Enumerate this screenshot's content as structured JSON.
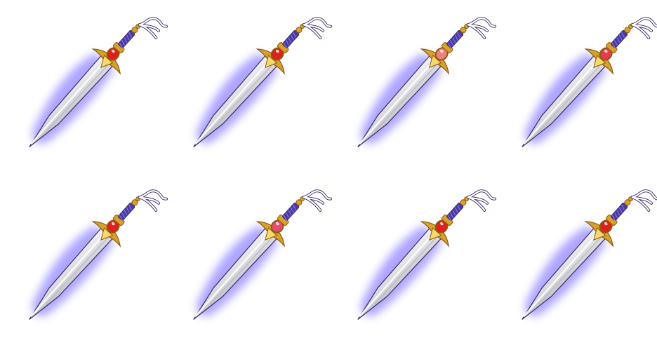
{
  "sheet": {
    "columns": 4,
    "rows": 2,
    "background": "#ffffff"
  },
  "palette": {
    "aura": "#6a5cff",
    "aura_light": "#b9b0ff",
    "blade": "#f4f4f6",
    "blade_shade": "#b9b9c2",
    "gold": "#d9a128",
    "gold_dark": "#8a5a12",
    "grip": "#4b3aa8",
    "ribbon": "#ffffff",
    "outline": "#3a2a66"
  },
  "sprites": [
    {
      "name": "sword-sprite-1",
      "gem": "#e0201a",
      "icon": "sword-icon"
    },
    {
      "name": "sword-sprite-2",
      "gem": "#e0201a",
      "icon": "sword-icon"
    },
    {
      "name": "sword-sprite-3",
      "gem": "#f08080",
      "icon": "sword-icon"
    },
    {
      "name": "sword-sprite-4",
      "gem": "#e83a4a",
      "icon": "sword-icon"
    },
    {
      "name": "sword-sprite-5",
      "gem": "#e0201a",
      "icon": "sword-icon"
    },
    {
      "name": "sword-sprite-6",
      "gem": "#e84a70",
      "icon": "sword-icon"
    },
    {
      "name": "sword-sprite-7",
      "gem": "#e0201a",
      "icon": "sword-icon"
    },
    {
      "name": "sword-sprite-8",
      "gem": "#e0201a",
      "icon": "sword-icon"
    }
  ]
}
